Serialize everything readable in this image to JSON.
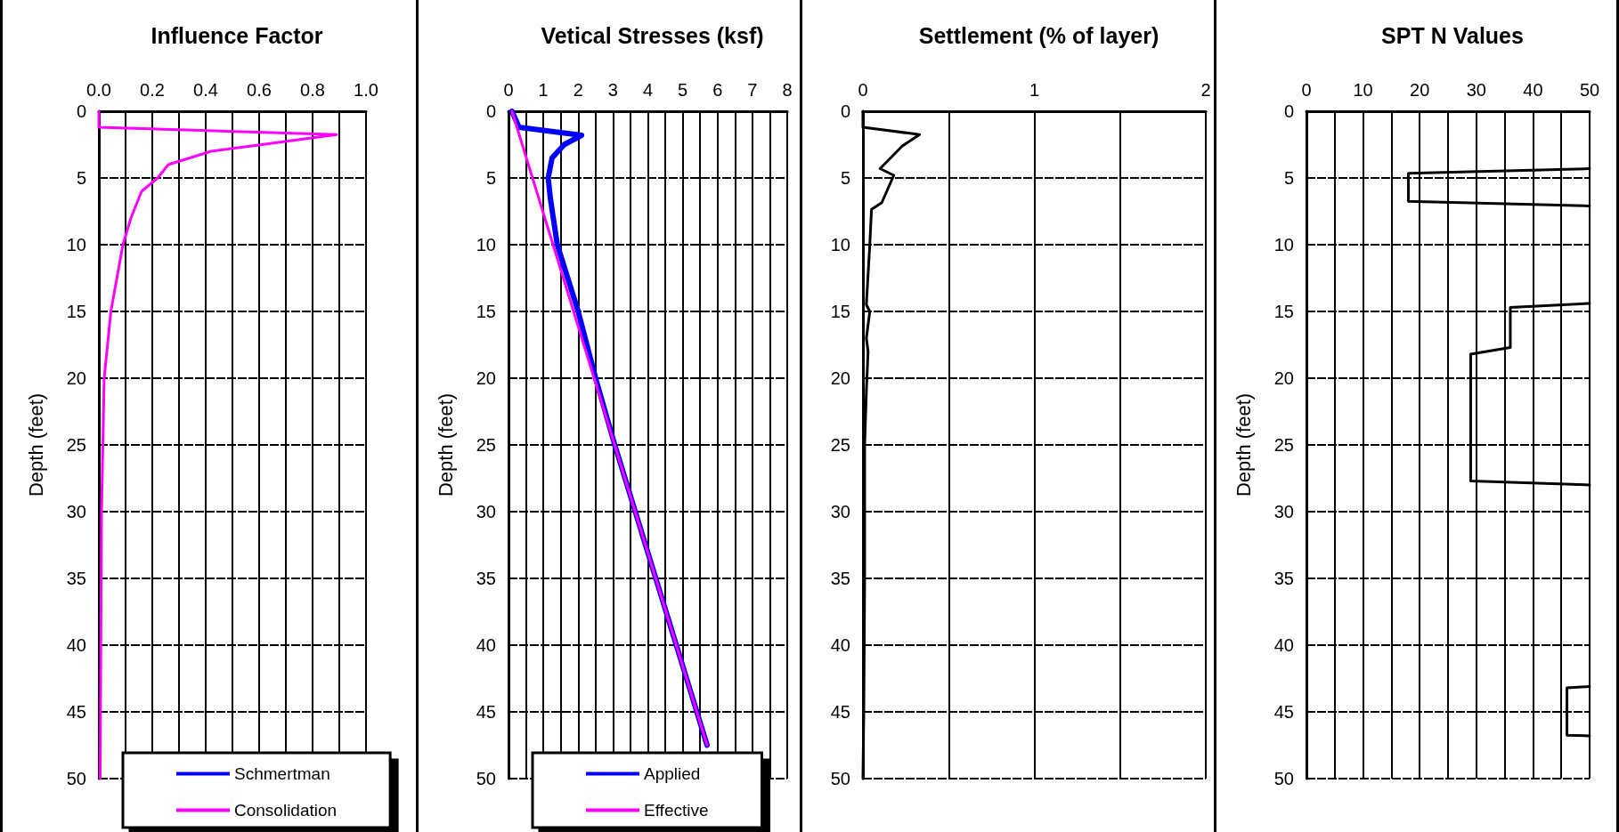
{
  "chart_data": [
    {
      "type": "line",
      "title": "Influence Factor",
      "ylabel": "Depth (feet)",
      "xlim": [
        0,
        1
      ],
      "xticks": [
        {
          "value": 0,
          "label": "0.0"
        },
        {
          "value": 0.2,
          "label": "0.2"
        },
        {
          "value": 0.4,
          "label": "0.4"
        },
        {
          "value": 0.6,
          "label": "0.6"
        },
        {
          "value": 0.8,
          "label": "0.8"
        },
        {
          "value": 1,
          "label": "1.0"
        }
      ],
      "ylim": [
        50,
        0
      ],
      "yticks": [
        0,
        5,
        10,
        15,
        20,
        25,
        30,
        35,
        40,
        45,
        50
      ],
      "grid": true,
      "legend": "bottom",
      "marker": "none",
      "line_style": "solid",
      "series": [
        {
          "name": "Schmertman",
          "color": "#0000ff",
          "x": [
            null
          ],
          "values": [
            null
          ]
        },
        {
          "name": "Consolidation",
          "color": "#ff00ff",
          "x": [
            0,
            0,
            0.89,
            0.61,
            0.42,
            0.26,
            0.22,
            0.16,
            0.12,
            0.09,
            0.045,
            0.02,
            0.01,
            0.005
          ],
          "values": [
            0,
            1.2,
            1.75,
            2.5,
            3,
            4,
            5,
            6,
            8,
            10,
            15,
            20,
            30,
            50
          ]
        }
      ]
    },
    {
      "type": "line",
      "title": "Vetical Stresses (ksf)",
      "ylabel": "Depth (feet)",
      "xlim": [
        0,
        8
      ],
      "xticks": [
        0,
        1,
        2,
        3,
        4,
        5,
        6,
        7,
        8
      ],
      "ylim": [
        50,
        0
      ],
      "yticks": [
        0,
        5,
        10,
        15,
        20,
        25,
        30,
        35,
        40,
        45,
        50
      ],
      "grid": true,
      "legend": "bottom",
      "marker": "none",
      "line_style": "solid",
      "series": [
        {
          "name": "Applied",
          "color": "#0000ff",
          "x": [
            0.1,
            0.3,
            2.1,
            1.6,
            1.25,
            1.14,
            1.2,
            1.4,
            2.0,
            2.5,
            3.05,
            5.7
          ],
          "values": [
            0,
            1.2,
            1.8,
            2.5,
            3.5,
            5,
            6.5,
            10,
            15,
            20,
            25,
            47.5
          ]
        },
        {
          "name": "Effective",
          "color": "#ff00ff",
          "x": [
            0.1,
            5.7
          ],
          "values": [
            0,
            47.5
          ]
        }
      ]
    },
    {
      "type": "line",
      "title": "Settlement (% of layer)",
      "xlim": [
        0,
        2
      ],
      "xticks": [
        0,
        1,
        2
      ],
      "ylim": [
        50,
        0
      ],
      "yticks": [
        0,
        5,
        10,
        15,
        20,
        25,
        30,
        35,
        40,
        45,
        50
      ],
      "grid": true,
      "legend": false,
      "marker": "none",
      "line_style": "solid",
      "series": [
        {
          "color": "#000000",
          "x": [
            0,
            0,
            0.33,
            0.23,
            0.1,
            0.18,
            0.11,
            0.05,
            0.04,
            0.02,
            0.04,
            0.02,
            0.03,
            0.02,
            0.01,
            0.01,
            0.005,
            0
          ],
          "values": [
            0,
            1.2,
            1.75,
            2.6,
            4.3,
            4.8,
            6.85,
            7.35,
            10,
            14.5,
            15,
            17,
            18,
            21,
            25,
            35,
            45,
            50
          ]
        }
      ]
    },
    {
      "type": "line",
      "title": "SPT N Values",
      "ylabel": "Depth (feet)",
      "xlim": [
        0,
        50
      ],
      "xticks": [
        0,
        10,
        20,
        30,
        40,
        50
      ],
      "ylim": [
        50,
        0
      ],
      "yticks": [
        0,
        5,
        10,
        15,
        20,
        25,
        30,
        35,
        40,
        45,
        50
      ],
      "grid": true,
      "legend": false,
      "marker": "none",
      "line_style": "solid",
      "series": [
        {
          "color": "#000000",
          "x": [
            50,
            18,
            18,
            50,
            null,
            50,
            36,
            36,
            29,
            29,
            50,
            null,
            50,
            46,
            46,
            50
          ],
          "values": [
            4.3,
            4.65,
            6.75,
            7.1,
            null,
            14.4,
            14.7,
            17.7,
            18.2,
            27.7,
            28,
            null,
            43.1,
            43.2,
            46.75,
            46.8
          ]
        }
      ]
    }
  ]
}
